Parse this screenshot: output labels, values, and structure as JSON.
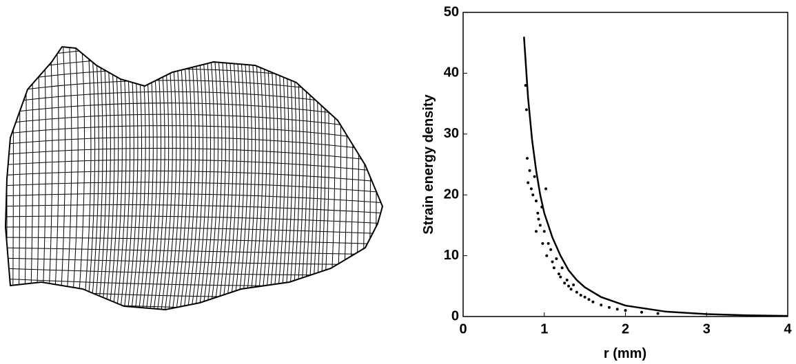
{
  "chart_data": {
    "type": "line",
    "xlabel": "r (mm)",
    "ylabel": "Strain energy density",
    "xlim": [
      0,
      4
    ],
    "xticks": [
      0,
      1,
      2,
      3,
      4
    ],
    "ylim": [
      0,
      50
    ],
    "yticks": [
      0,
      10,
      20,
      30,
      40,
      50
    ],
    "series": [
      {
        "type": "line",
        "color": "#000000",
        "x": [
          0.75,
          0.8,
          0.85,
          0.9,
          0.95,
          1.0,
          1.1,
          1.2,
          1.3,
          1.4,
          1.5,
          1.7,
          2.0,
          2.5,
          3.0,
          3.5,
          4.0
        ],
        "values": [
          46,
          36,
          29,
          24,
          20,
          17,
          13,
          10,
          7.6,
          6,
          4.8,
          3.2,
          1.8,
          0.8,
          0.4,
          0.2,
          0.1
        ]
      },
      {
        "type": "scatter",
        "color": "#000000",
        "x": [
          0.77,
          0.78,
          0.79,
          0.8,
          0.82,
          0.84,
          0.86,
          0.88,
          0.9,
          0.92,
          0.95,
          0.97,
          1.0,
          1.02,
          1.05,
          0.9,
          0.93,
          0.98,
          1.03,
          1.08,
          1.1,
          1.12,
          1.15,
          1.18,
          1.2,
          1.22,
          1.25,
          1.28,
          1.3,
          1.33,
          1.36,
          1.4,
          1.45,
          1.5,
          1.55,
          1.6,
          1.7,
          1.8,
          1.9,
          2.0,
          2.2,
          2.4
        ],
        "values": [
          38,
          34,
          26,
          22,
          24,
          21,
          20,
          23,
          19,
          17,
          15,
          18,
          14,
          21,
          12,
          14,
          16,
          12,
          10,
          11,
          9,
          8,
          9.5,
          7,
          6.5,
          8,
          5.5,
          6,
          5,
          4.5,
          5.2,
          4,
          3.5,
          3.2,
          2.8,
          2.4,
          1.9,
          1.5,
          1.2,
          1.0,
          0.7,
          0.5
        ]
      }
    ]
  }
}
